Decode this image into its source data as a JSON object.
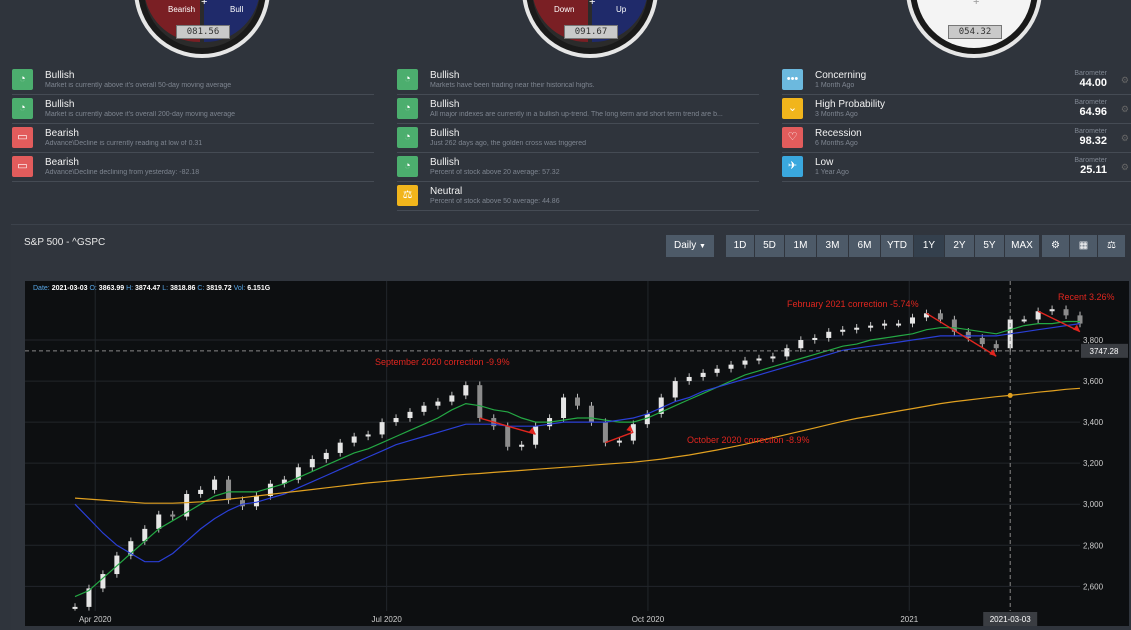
{
  "gauges": [
    {
      "left_label": "Bearish",
      "right_label": "Bull",
      "plus": "+",
      "value": "081.56",
      "style": "dark"
    },
    {
      "left_label": "Down",
      "right_label": "Up",
      "plus": "+",
      "value": "091.67",
      "style": "dark"
    },
    {
      "left_label": "",
      "right_label": "",
      "plus": "+",
      "value": "054.32",
      "style": "white"
    }
  ],
  "signals_col1": [
    {
      "title": "Bullish",
      "desc": "Market is currently above it's overall 50-day moving average",
      "color": "#4cae6e",
      "icon": "gauge-icon"
    },
    {
      "title": "Bullish",
      "desc": "Market is currently above it's overall 200-day moving average",
      "color": "#4cae6e",
      "icon": "gauge-icon"
    },
    {
      "title": "Bearish",
      "desc": "Advance\\Decline is currently reading at low of 0.31",
      "color": "#e25c5c",
      "icon": "comment-icon"
    },
    {
      "title": "Bearish",
      "desc": "Advance\\Decline declining from yesterday: -82.18",
      "color": "#e25c5c",
      "icon": "comment-icon"
    }
  ],
  "signals_col2": [
    {
      "title": "Bullish",
      "desc": "Markets have been trading near their historical highs.",
      "color": "#4cae6e",
      "icon": "gauge-icon"
    },
    {
      "title": "Bullish",
      "desc": "All major indexes are currently in a bullish up-trend. The long term and short term trend are b...",
      "color": "#4cae6e",
      "icon": "gauge-icon"
    },
    {
      "title": "Bullish",
      "desc": "Just 262 days ago, the golden cross was triggered",
      "color": "#4cae6e",
      "icon": "gauge-icon"
    },
    {
      "title": "Bullish",
      "desc": "Percent of stock above 20 average: 57.32",
      "color": "#4cae6e",
      "icon": "gauge-icon"
    },
    {
      "title": "Neutral",
      "desc": "Percent of stock above 50 average: 44.86",
      "color": "#f1b51c",
      "icon": "balance-icon"
    }
  ],
  "signals_col3": [
    {
      "title": "Concerning",
      "desc": "1 Month Ago",
      "baro_label": "Barometer",
      "baro_value": "44.00",
      "color": "#6cb9de",
      "icon": "dots-icon"
    },
    {
      "title": "High Probability",
      "desc": "3 Months Ago",
      "baro_label": "Barometer",
      "baro_value": "64.96",
      "color": "#f1b51c",
      "icon": "chevron-down-icon"
    },
    {
      "title": "Recession",
      "desc": "6 Months Ago",
      "baro_label": "Barometer",
      "baro_value": "98.32",
      "color": "#e25c5c",
      "icon": "shield-icon"
    },
    {
      "title": "Low",
      "desc": "1 Year Ago",
      "baro_label": "Barometer",
      "baro_value": "25.11",
      "color": "#3aa8de",
      "icon": "plane-icon"
    }
  ],
  "panel": {
    "title": "S&P 500 - ^GSPC",
    "interval": "Daily",
    "ranges": [
      "1D",
      "5D",
      "1M",
      "3M",
      "6M",
      "YTD",
      "1Y",
      "2Y",
      "5Y",
      "MAX"
    ],
    "active_range": "1Y",
    "tools": [
      "settings-icon",
      "calculator-icon",
      "scale-icon"
    ]
  },
  "info_bar": {
    "date_label": "Date:",
    "date": "2021-03-03",
    "o_label": "O:",
    "open": "3863.99",
    "h_label": "H:",
    "high": "3874.47",
    "l_label": "L:",
    "low": "3818.86",
    "c_label": "C:",
    "close": "3819.72",
    "v_label": "Vol:",
    "vol": "6.151G"
  },
  "chart_data": {
    "type": "line",
    "x_tick_labels": [
      "Apr 2020",
      "Jul 2020",
      "Oct 2020",
      "2021"
    ],
    "y_tick_labels": [
      "2,600",
      "2,800",
      "3,000",
      "3,200",
      "3,400",
      "3,600",
      "3,800"
    ],
    "ylim": [
      2480,
      3990
    ],
    "crosshair_price": "3747.28",
    "crosshair_date": "2021-03-03",
    "series": [
      {
        "name": "price",
        "color": "#dcdcdc",
        "values": [
          2500,
          2590,
          2660,
          2750,
          2820,
          2880,
          2950,
          2940,
          3050,
          3070,
          3120,
          3020,
          2990,
          3040,
          3100,
          3120,
          3180,
          3220,
          3250,
          3300,
          3330,
          3340,
          3400,
          3420,
          3450,
          3480,
          3500,
          3530,
          3580,
          3420,
          3380,
          3280,
          3290,
          3380,
          3420,
          3520,
          3480,
          3400,
          3300,
          3310,
          3390,
          3440,
          3520,
          3600,
          3620,
          3640,
          3660,
          3680,
          3700,
          3710,
          3720,
          3760,
          3800,
          3810,
          3840,
          3850,
          3860,
          3870,
          3880,
          3880,
          3910,
          3930,
          3900,
          3840,
          3810,
          3780,
          3760,
          3900,
          3900,
          3940,
          3950,
          3920,
          3880
        ]
      },
      {
        "name": "MA 50",
        "color": "#24a844",
        "values": [
          2550,
          2580,
          2640,
          2700,
          2760,
          2820,
          2880,
          2920,
          2960,
          3000,
          3040,
          3060,
          3060,
          3060,
          3080,
          3100,
          3130,
          3160,
          3190,
          3220,
          3250,
          3270,
          3300,
          3330,
          3360,
          3390,
          3420,
          3460,
          3490,
          3480,
          3460,
          3450,
          3420,
          3400,
          3400,
          3410,
          3420,
          3420,
          3410,
          3400,
          3400,
          3420,
          3450,
          3480,
          3510,
          3540,
          3570,
          3600,
          3630,
          3650,
          3670,
          3690,
          3710,
          3730,
          3750,
          3770,
          3780,
          3800,
          3810,
          3820,
          3830,
          3850,
          3860,
          3860,
          3850,
          3840,
          3830,
          3850,
          3870,
          3880,
          3880,
          3890,
          3890
        ]
      },
      {
        "name": "MA 100",
        "color": "#2a3fd6",
        "values": [
          3000,
          2930,
          2860,
          2800,
          2760,
          2720,
          2720,
          2760,
          2820,
          2880,
          2930,
          2970,
          3000,
          3010,
          3030,
          3050,
          3080,
          3110,
          3140,
          3170,
          3200,
          3230,
          3260,
          3290,
          3310,
          3330,
          3350,
          3370,
          3390,
          3390,
          3390,
          3380,
          3380,
          3380,
          3390,
          3400,
          3400,
          3400,
          3400,
          3410,
          3420,
          3440,
          3470,
          3500,
          3520,
          3550,
          3570,
          3590,
          3610,
          3630,
          3650,
          3670,
          3690,
          3710,
          3730,
          3750,
          3760,
          3770,
          3780,
          3790,
          3800,
          3810,
          3820,
          3820,
          3820,
          3820,
          3820,
          3830,
          3840,
          3850,
          3860,
          3870,
          3880
        ]
      },
      {
        "name": "MA 200",
        "color": "#e0a020",
        "values": [
          3030,
          3025,
          3020,
          3015,
          3010,
          3005,
          3005,
          3005,
          3008,
          3012,
          3018,
          3025,
          3032,
          3040,
          3048,
          3056,
          3064,
          3072,
          3080,
          3088,
          3096,
          3104,
          3110,
          3116,
          3122,
          3128,
          3134,
          3140,
          3146,
          3150,
          3155,
          3160,
          3165,
          3170,
          3175,
          3180,
          3185,
          3190,
          3195,
          3200,
          3205,
          3212,
          3220,
          3230,
          3240,
          3252,
          3264,
          3278,
          3292,
          3308,
          3324,
          3340,
          3356,
          3372,
          3388,
          3404,
          3418,
          3430,
          3442,
          3454,
          3466,
          3478,
          3490,
          3500,
          3508,
          3516,
          3524,
          3530,
          3538,
          3546,
          3552,
          3560,
          3565
        ]
      }
    ],
    "annotations": [
      {
        "text": "September 2020 correction -9.9%",
        "color": "#e0261f"
      },
      {
        "text": "October 2020 correction -8.9%",
        "color": "#e0261f"
      },
      {
        "text": "February 2021 correction -5.74%",
        "color": "#e0261f"
      },
      {
        "text": "Recent 3.26%",
        "color": "#e0261f"
      }
    ]
  }
}
